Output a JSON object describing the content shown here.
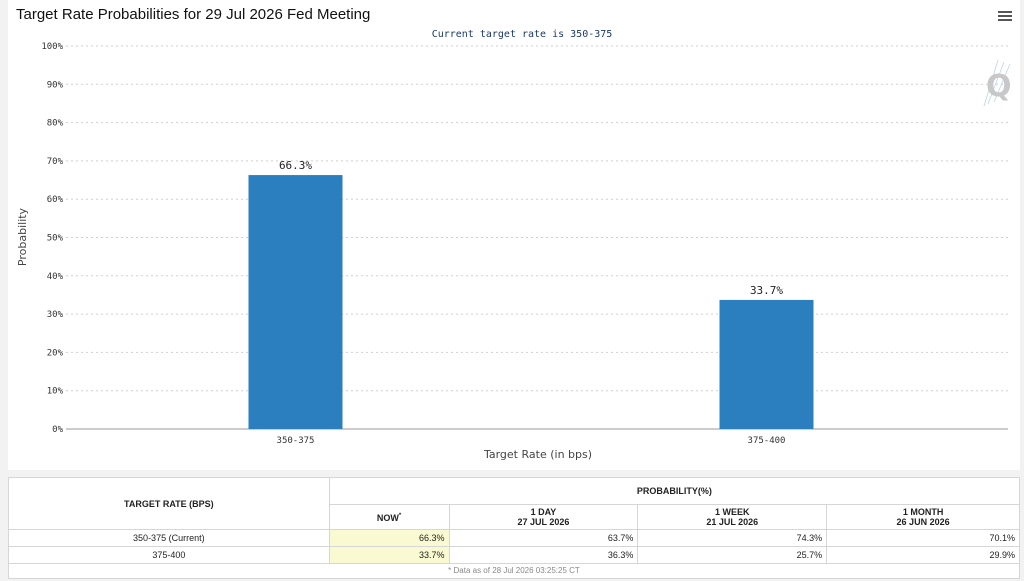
{
  "header": {
    "title": "Target Rate Probabilities for 29 Jul 2026 Fed Meeting",
    "menu_icon": "hamburger-icon",
    "logo_icon": "q-logo-icon"
  },
  "chart_data": {
    "type": "bar",
    "title": "Target Rate Probabilities for 29 Jul 2026 Fed Meeting",
    "subtitle": "Current target rate is 350-375",
    "categories": [
      "350-375",
      "375-400"
    ],
    "values": [
      66.3,
      33.7
    ],
    "data_labels": [
      "66.3%",
      "33.7%"
    ],
    "xlabel": "Target Rate (in bps)",
    "ylabel": "Probability",
    "ylim": [
      0,
      100
    ],
    "yticks": [
      "0%",
      "10%",
      "20%",
      "30%",
      "40%",
      "50%",
      "60%",
      "70%",
      "80%",
      "90%",
      "100%"
    ],
    "grid": true,
    "bar_color": "#2b7fbf"
  },
  "table": {
    "col_target": "TARGET RATE (BPS)",
    "col_probability": "PROBABILITY(%)",
    "sub_now": "NOW",
    "sub_now_mark": "*",
    "sub_1day": "1 DAY",
    "sub_1day_date": "27 JUL 2026",
    "sub_1week": "1 WEEK",
    "sub_1week_date": "21 JUL 2026",
    "sub_1month": "1 MONTH",
    "sub_1month_date": "26 JUN 2026",
    "rows": [
      {
        "rate": "350-375 (Current)",
        "now": "66.3%",
        "day": "63.7%",
        "week": "74.3%",
        "month": "70.1%"
      },
      {
        "rate": "375-400",
        "now": "33.7%",
        "day": "36.3%",
        "week": "25.7%",
        "month": "29.9%"
      }
    ],
    "footnote": "* Data as of 28 Jul 2026 03:25:25 CT"
  }
}
